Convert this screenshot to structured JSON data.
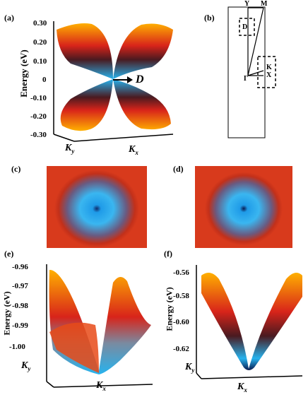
{
  "panels": {
    "a": {
      "label": "(a)",
      "ylabel": "Energy (eV)",
      "yticks": [
        "0.30",
        "0.20",
        "0.10",
        "0",
        "-0.10",
        "-0.20",
        "-0.30"
      ],
      "marker": "D",
      "kx": "K",
      "kx_sub": "x",
      "ky": "K",
      "ky_sub": "y"
    },
    "b": {
      "label": "(b)",
      "points": {
        "Y": "Y",
        "M": "M",
        "D": "D",
        "Gamma": "Γ",
        "K": "K",
        "X": "X"
      }
    },
    "c": {
      "label": "(c)"
    },
    "d": {
      "label": "(d)"
    },
    "e": {
      "label": "(e)",
      "ylabel": "Energy (eV)",
      "yticks": [
        "-0.96",
        "-0.97",
        "-0.98",
        "-0.99",
        "-1.00"
      ],
      "kx": "K",
      "kx_sub": "x",
      "ky": "K",
      "ky_sub": "y"
    },
    "f": {
      "label": "(f)",
      "ylabel": "Energy (eV)",
      "yticks": [
        "-0.56",
        "-0.58",
        "-0.60",
        "-0.62"
      ],
      "kx": "K",
      "kx_sub": "x",
      "ky": "K",
      "ky_sub": "y"
    }
  },
  "colors": {
    "surface_edge": "#ffb000",
    "surface_mid": "#d8241a",
    "surface_dark": "#4a1a20",
    "surface_cone": "#27b3ee",
    "map_outer": "#d83a1c",
    "map_center": "#1f9be8"
  }
}
